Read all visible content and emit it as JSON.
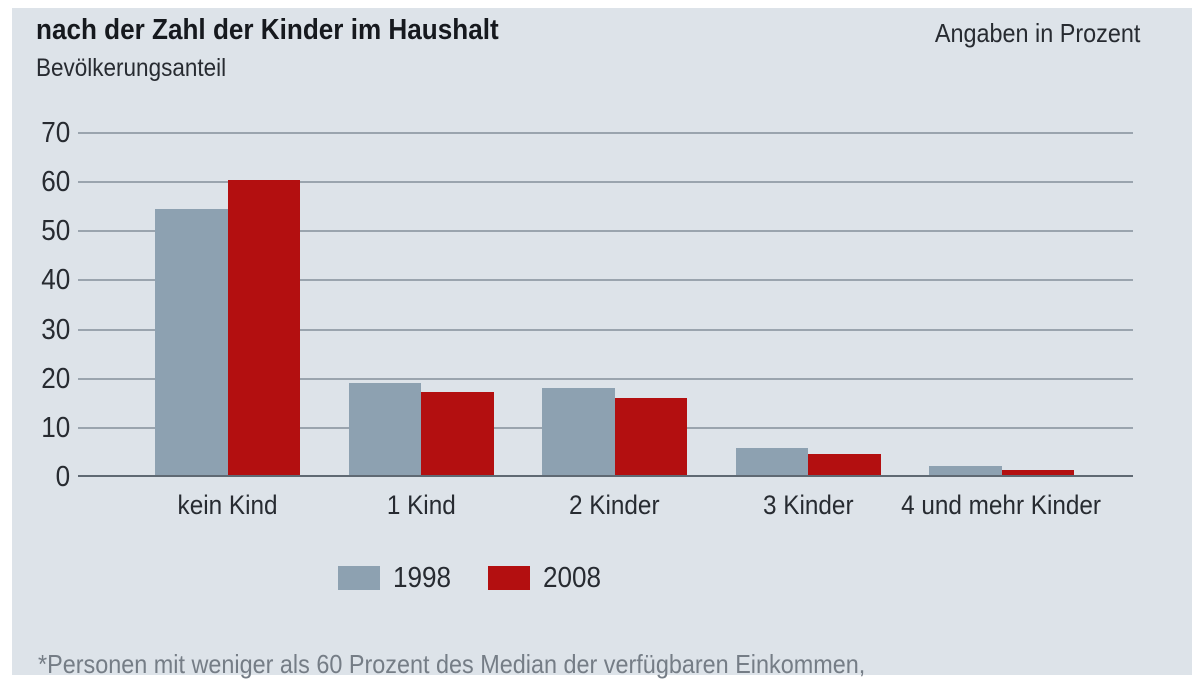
{
  "header": {
    "title": "nach der Zahl der Kinder im Haushalt",
    "unit_note": "Angaben in Prozent",
    "subtitle": "Bevölkerungsanteil"
  },
  "chart_data": {
    "type": "bar",
    "categories": [
      "kein Kind",
      "1 Kind",
      "2 Kinder",
      "3 Kinder",
      "4 und mehr Kinder"
    ],
    "series": [
      {
        "name": "1998",
        "color": "#8da1b1",
        "values": [
          54.5,
          19.2,
          18.2,
          5.9,
          2.2
        ]
      },
      {
        "name": "2008",
        "color": "#b30f10",
        "values": [
          60.4,
          17.2,
          16.0,
          4.6,
          1.4
        ]
      }
    ],
    "title": "nach der Zahl der Kinder im Haushalt",
    "subtitle": "Bevölkerungsanteil",
    "unit": "Angaben in Prozent",
    "xlabel": "",
    "ylabel": "Bevölkerungsanteil",
    "yticks": [
      0,
      10,
      20,
      30,
      40,
      50,
      60,
      70
    ],
    "ylim": [
      0,
      70
    ],
    "grid": true,
    "legend_position": "bottom"
  },
  "colors": {
    "panel_bg": "#dde3e9",
    "gridline": "#9aa4ae",
    "baseline": "#5f6973",
    "series_1998": "#8da1b1",
    "series_2008": "#b30f10"
  },
  "footnote": "*Personen mit weniger als 60 Prozent des Median der verfügbaren Einkommen,"
}
